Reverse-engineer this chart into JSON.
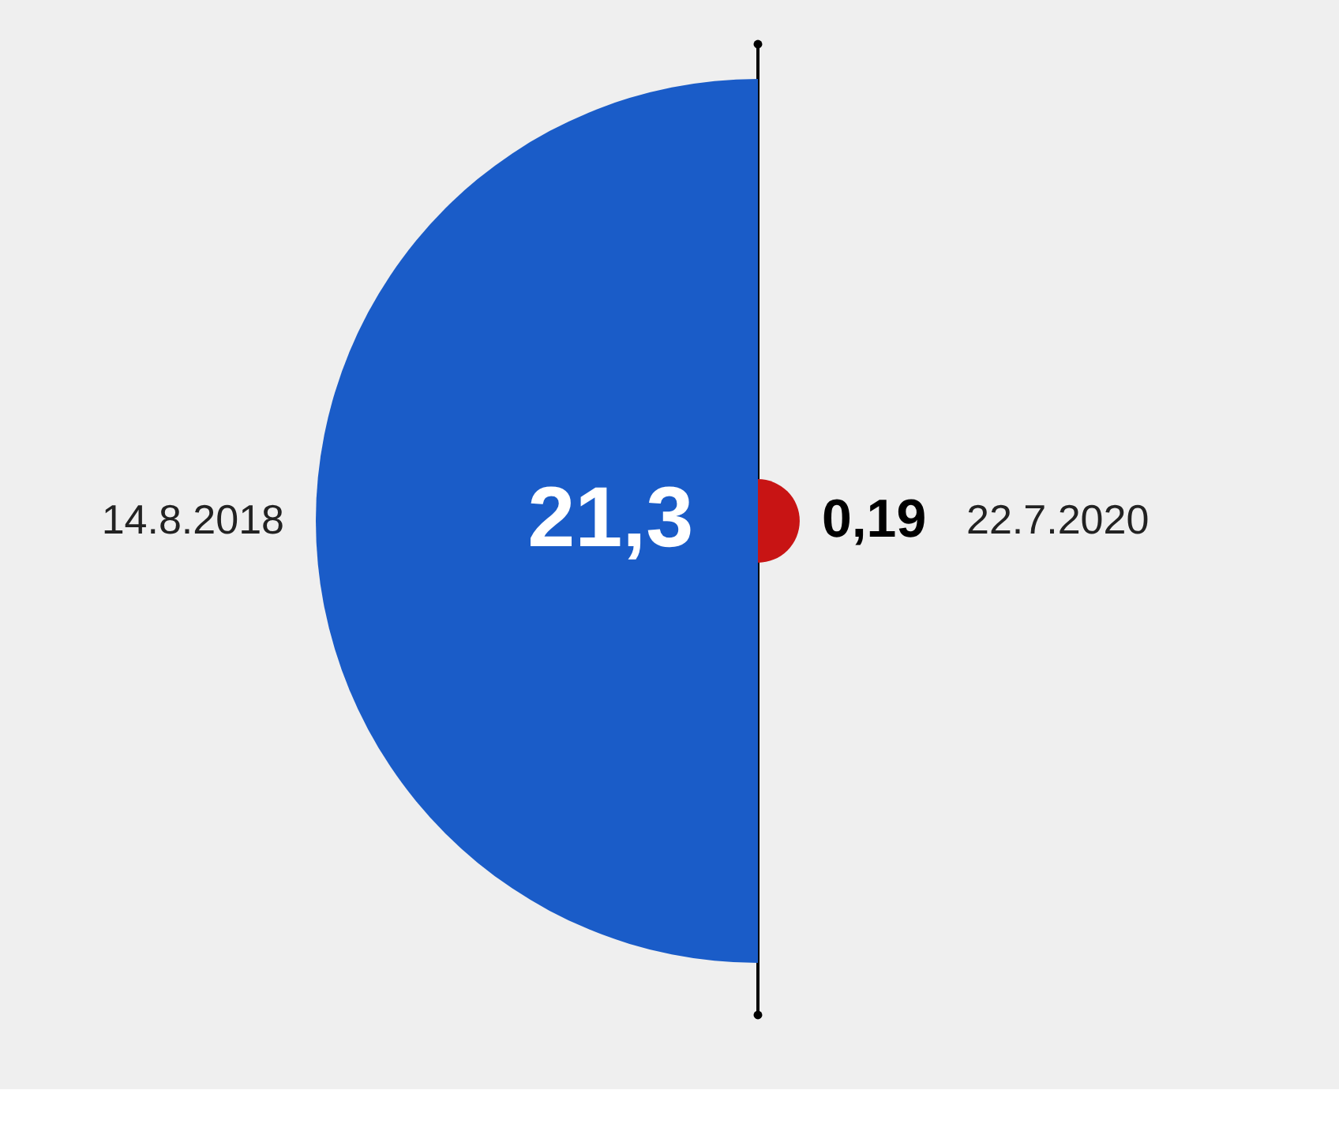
{
  "chart_data": {
    "type": "other",
    "categories": [
      "14.8.2018",
      "22.7.2020"
    ],
    "values": [
      21.3,
      0.19
    ],
    "colors": [
      "#1a5cc8",
      "#c81414"
    ],
    "value_labels": [
      "21,3",
      "0,19"
    ]
  }
}
